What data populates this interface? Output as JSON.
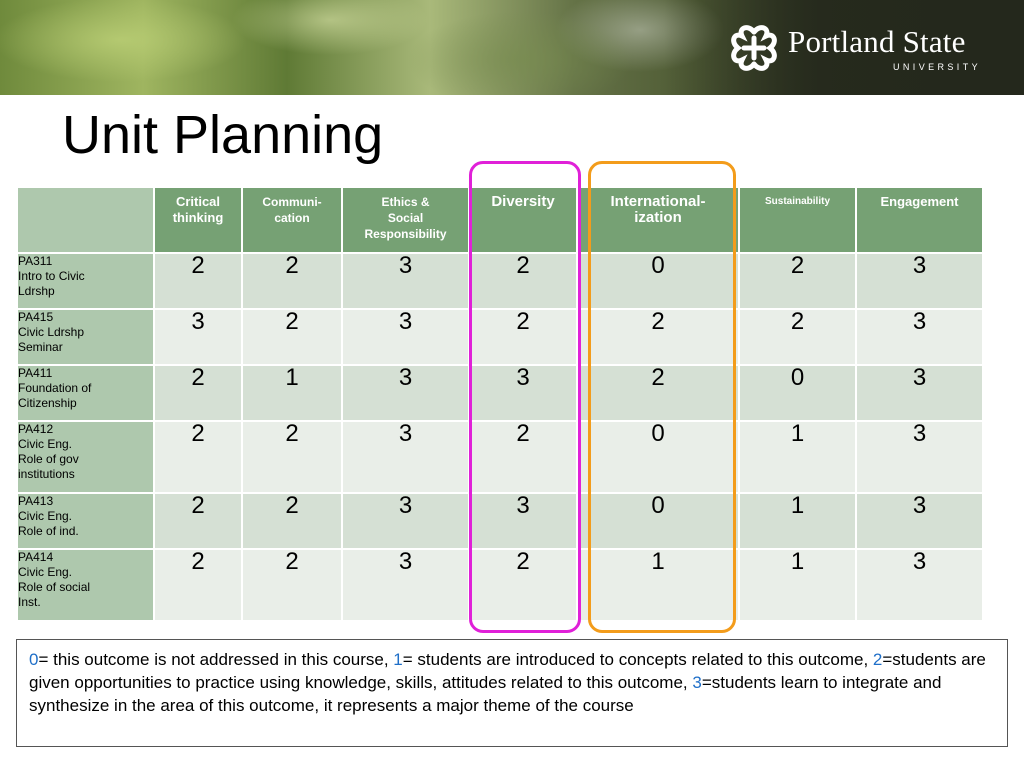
{
  "header": {
    "logo_name": "Portland State",
    "logo_sub": "UNIVERSITY"
  },
  "slide": {
    "title": "Unit Planning"
  },
  "table": {
    "columns": [
      {
        "label": "Critical thinking",
        "lines": [
          "Critical",
          "thinking"
        ],
        "size": 13
      },
      {
        "label": "Communi-cation",
        "lines": [
          "Communi-",
          "cation"
        ],
        "size": 12
      },
      {
        "label": "Ethics & Social Responsibility",
        "lines": [
          "Ethics &",
          "Social",
          "Responsibility"
        ],
        "size": 12
      },
      {
        "label": "Diversity",
        "lines": [
          "Diversity"
        ],
        "size": 15
      },
      {
        "label": "International-ization",
        "lines": [
          "International-",
          "ization"
        ],
        "size": 15
      },
      {
        "label": "Sustainability",
        "lines": [
          "Sustainability"
        ],
        "size": 10
      },
      {
        "label": "Engagement",
        "lines": [
          "Engagement"
        ],
        "size": 13
      }
    ],
    "rows": [
      {
        "course": [
          "PA311",
          "Intro to Civic",
          "Ldrshp"
        ],
        "values": [
          "2",
          "2",
          "3",
          "2",
          "0",
          "2",
          "3"
        ]
      },
      {
        "course": [
          "PA415",
          "Civic Ldrshp",
          "Seminar"
        ],
        "values": [
          "3",
          "2",
          "3",
          "2",
          "2",
          "2",
          "3"
        ]
      },
      {
        "course": [
          "PA411",
          "Foundation of",
          "Citizenship"
        ],
        "values": [
          "2",
          "1",
          "3",
          "3",
          "2",
          "0",
          "3"
        ]
      },
      {
        "course": [
          "PA412",
          "Civic Eng.",
          "Role of gov",
          "institutions"
        ],
        "values": [
          "2",
          "2",
          "3",
          "2",
          "0",
          "1",
          "3"
        ]
      },
      {
        "course": [
          "PA413",
          "Civic Eng.",
          "Role of ind."
        ],
        "values": [
          "2",
          "2",
          "3",
          "3",
          "0",
          "1",
          "3"
        ]
      },
      {
        "course": [
          "PA414",
          "Civic Eng.",
          "Role of social",
          "Inst."
        ],
        "values": [
          "2",
          "2",
          "3",
          "2",
          "1",
          "1",
          "3"
        ]
      }
    ]
  },
  "highlights": {
    "diversity_color": "#e020d8",
    "internationalization_color": "#f39c1b"
  },
  "legend": {
    "parts": [
      {
        "text": "0",
        "num": true
      },
      {
        "text": "= this outcome is not addressed in this course, ",
        "num": false
      },
      {
        "text": "1",
        "num": true
      },
      {
        "text": "= students are introduced to concepts related to this outcome, ",
        "num": false
      },
      {
        "text": "2",
        "num": true
      },
      {
        "text": "=students are given opportunities to practice using knowledge, skills, attitudes related to this outcome, ",
        "num": false
      },
      {
        "text": "3",
        "num": true
      },
      {
        "text": "=students learn to integrate and synthesize in the area of this outcome, it represents a major theme of the course",
        "num": false
      }
    ]
  }
}
